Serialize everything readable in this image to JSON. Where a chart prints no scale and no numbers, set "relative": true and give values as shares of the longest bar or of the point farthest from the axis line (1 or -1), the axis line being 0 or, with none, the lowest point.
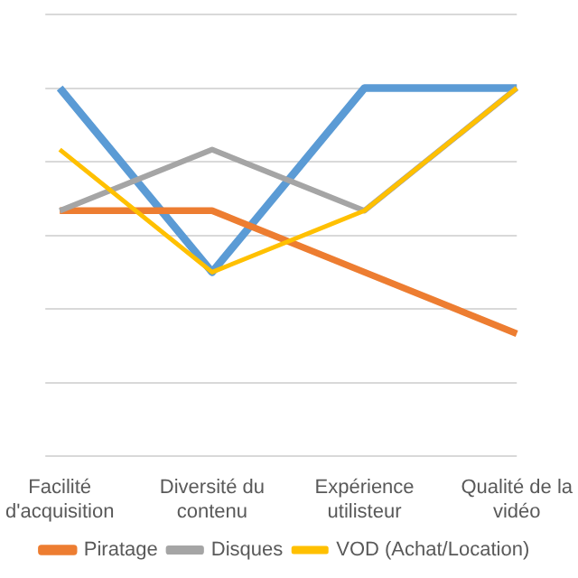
{
  "chart_data": {
    "type": "line",
    "relative": true,
    "categories": [
      "Facilité d'acquisition",
      "Diversité du contenu",
      "Expérience utilisteur",
      "Qualité de la vidéo"
    ],
    "series": [
      {
        "color": "#5b9bd5",
        "values": [
          1,
          0.5,
          1,
          1
        ]
      },
      {
        "name": "Piratage",
        "color": "#ed7d31",
        "values": [
          0.667,
          0.667,
          0.5,
          0.333
        ]
      },
      {
        "name": "Disques",
        "color": "#a5a5a5",
        "values": [
          0.667,
          0.833,
          0.667,
          1
        ]
      },
      {
        "name": "VOD (Achat/Location)",
        "color": "#ffc000",
        "values": [
          0.833,
          0.5,
          0.667,
          1
        ]
      }
    ],
    "grid": "y",
    "legend": "bottom",
    "marker": "none",
    "line_style": "solid"
  }
}
